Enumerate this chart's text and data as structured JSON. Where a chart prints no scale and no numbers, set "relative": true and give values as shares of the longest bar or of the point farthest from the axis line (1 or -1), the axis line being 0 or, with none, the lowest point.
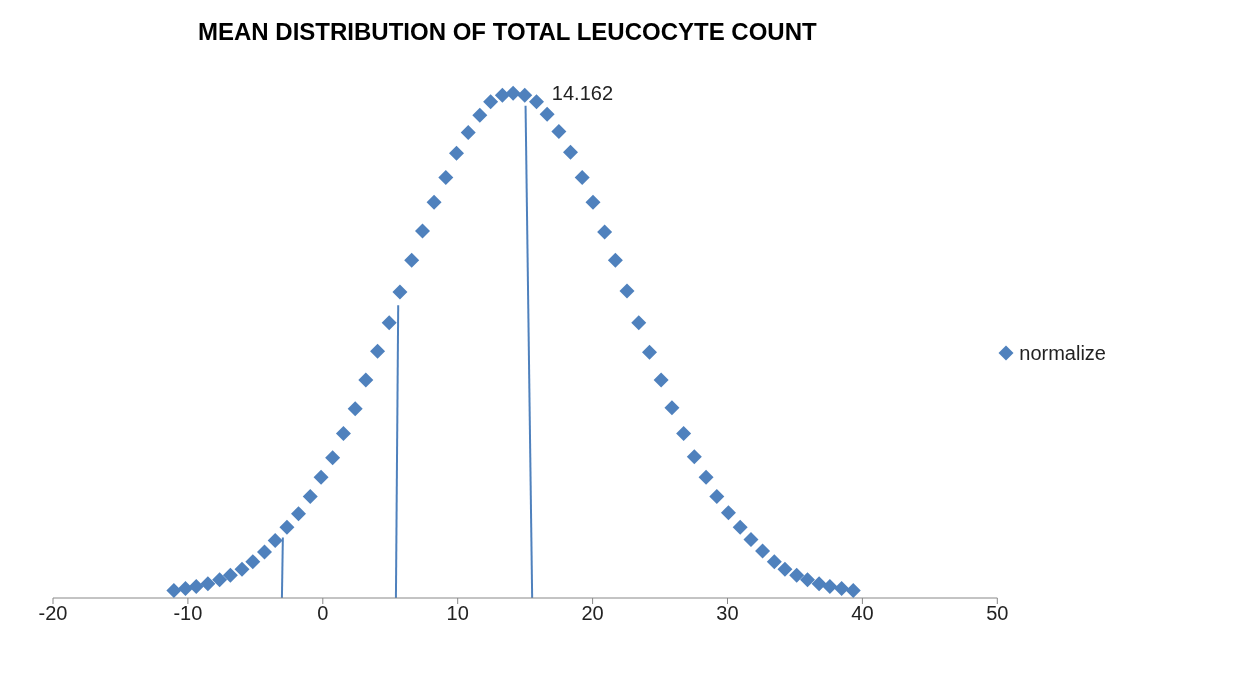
{
  "chart_data": {
    "type": "scatter",
    "title": "MEAN DISTRIBUTION OF TOTAL LEUCOCYTE COUNT",
    "relative": true,
    "marker": "diamond",
    "legend": "right",
    "tick_labels": "x",
    "xlim": [
      -20,
      50
    ],
    "xticks": [
      -20,
      -10,
      0,
      10,
      20,
      30,
      40,
      50
    ],
    "annotations": [
      {
        "text": "14.162",
        "x": 14.162,
        "y": 1
      }
    ],
    "series": [
      {
        "name": "normalize",
        "color": "#4f81bd",
        "x": [
          -11.04,
          -10.18,
          -9.38,
          -8.52,
          -7.65,
          -6.85,
          -5.99,
          -5.19,
          -4.32,
          -3.53,
          -2.66,
          -1.8,
          -0.93,
          -0.13,
          0.73,
          1.53,
          2.4,
          3.19,
          4.06,
          4.92,
          5.72,
          6.59,
          7.39,
          8.25,
          9.12,
          9.91,
          10.78,
          11.64,
          12.44,
          13.31,
          14.11,
          14.97,
          15.84,
          16.63,
          17.5,
          18.36,
          19.23,
          20.03,
          20.89,
          21.69,
          22.55,
          23.42,
          24.22,
          25.08,
          25.88,
          26.75,
          27.54,
          28.41,
          29.21,
          30.07,
          30.94,
          31.74,
          32.6,
          33.47,
          34.26,
          35.13,
          35.93,
          36.79,
          37.59,
          38.46,
          39.32
        ],
        "values": [
          0.015,
          0.019,
          0.023,
          0.028,
          0.036,
          0.045,
          0.057,
          0.072,
          0.091,
          0.114,
          0.14,
          0.167,
          0.201,
          0.239,
          0.278,
          0.326,
          0.375,
          0.432,
          0.489,
          0.545,
          0.606,
          0.669,
          0.727,
          0.784,
          0.833,
          0.881,
          0.922,
          0.956,
          0.983,
          0.996,
          1,
          0.996,
          0.983,
          0.958,
          0.924,
          0.883,
          0.833,
          0.784,
          0.725,
          0.669,
          0.608,
          0.545,
          0.487,
          0.432,
          0.377,
          0.326,
          0.28,
          0.239,
          0.201,
          0.169,
          0.14,
          0.116,
          0.093,
          0.072,
          0.057,
          0.045,
          0.036,
          0.028,
          0.023,
          0.019,
          0.015
        ]
      },
      {
        "type": "line",
        "color": "#4f81bd",
        "marker": "none",
        "x": [
          -3.03,
          -2.96
        ],
        "values": [
          0,
          0.12
        ]
      },
      {
        "type": "line",
        "color": "#4f81bd",
        "marker": "none",
        "x": [
          5.42,
          5.59
        ],
        "values": [
          0,
          0.58
        ]
      },
      {
        "type": "line",
        "color": "#4f81bd",
        "marker": "none",
        "x": [
          15.52,
          15.03
        ],
        "values": [
          0,
          0.975
        ]
      }
    ]
  }
}
